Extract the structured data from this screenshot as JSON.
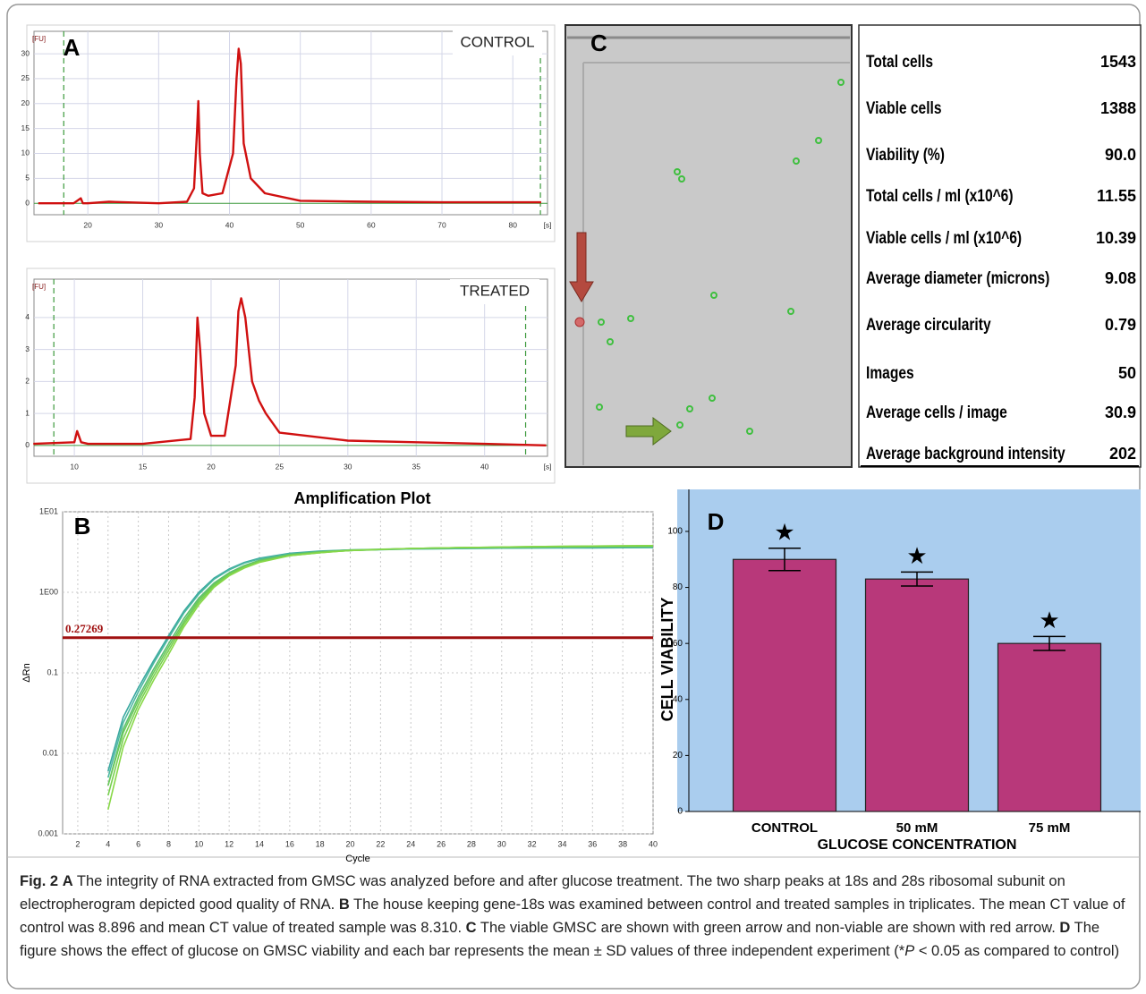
{
  "chart_data": [
    {
      "type": "line",
      "panel": "A",
      "annotation": "CONTROL",
      "y_label": "[FU]",
      "x_label": "[s]",
      "x": [
        13,
        18,
        19,
        19.3,
        20,
        23,
        30,
        34,
        35,
        35.4,
        35.6,
        35.8,
        36.2,
        37,
        39,
        40.5,
        41,
        41.3,
        41.6,
        42,
        43,
        45,
        50,
        60,
        70,
        80,
        84
      ],
      "series": [
        {
          "color": "#d01010",
          "values": [
            0,
            0,
            1,
            0,
            0,
            0.3,
            0,
            0.3,
            3,
            14,
            20.5,
            10,
            2,
            1.5,
            2,
            10,
            25,
            31,
            28,
            12,
            5,
            2,
            0.5,
            0.3,
            0.2,
            0.2,
            0.2
          ]
        }
      ],
      "markers": [
        16.6,
        83.9
      ],
      "xlim": [
        12.4,
        84.9
      ],
      "ylim": [
        -2.3,
        34.5
      ],
      "xticks": [
        20,
        30,
        40,
        50,
        60,
        70,
        80
      ],
      "yticks": [
        0,
        5,
        10,
        15,
        20,
        25,
        30
      ],
      "grid": true
    },
    {
      "type": "line",
      "annotation": "TREATED",
      "y_label": "[FU]",
      "x_label": "[s]",
      "x": [
        7,
        10,
        10.2,
        10.5,
        11,
        15,
        18.5,
        18.8,
        19,
        19.2,
        19.5,
        20,
        21,
        21.8,
        22,
        22.2,
        22.5,
        23,
        23.5,
        24,
        25,
        30,
        35,
        40,
        44.5
      ],
      "series": [
        {
          "color": "#d01010",
          "values": [
            0.05,
            0.1,
            0.45,
            0.1,
            0.05,
            0.05,
            0.2,
            1.5,
            4,
            3,
            1,
            0.3,
            0.3,
            2.5,
            4.2,
            4.6,
            4,
            2,
            1.4,
            1,
            0.4,
            0.15,
            0.1,
            0.05,
            0
          ]
        }
      ],
      "markers": [
        8.5,
        43
      ],
      "xlim": [
        7.05,
        44.6
      ],
      "ylim": [
        -0.34,
        5.2
      ],
      "xticks": [
        10,
        15,
        20,
        25,
        30,
        35,
        40
      ],
      "yticks": [
        0,
        1,
        2,
        3,
        4
      ],
      "grid": true
    },
    {
      "type": "line",
      "title": "Amplification Plot",
      "panel": "B",
      "y_label": "ΔRn",
      "x_label": "Cycle",
      "log_y": true,
      "x": [
        4,
        5,
        6,
        7,
        8,
        9,
        10,
        11,
        12,
        13,
        14,
        16,
        18,
        20,
        24,
        28,
        32,
        36,
        40
      ],
      "series": [
        {
          "color": "#3aa8a0",
          "values": [
            0.006,
            0.028,
            0.065,
            0.14,
            0.29,
            0.58,
            1.0,
            1.5,
            1.95,
            2.35,
            2.65,
            3.05,
            3.25,
            3.35,
            3.45,
            3.5,
            3.55,
            3.55,
            3.6
          ]
        },
        {
          "color": "#4cb8a0",
          "values": [
            0.005,
            0.024,
            0.058,
            0.13,
            0.27,
            0.55,
            0.95,
            1.45,
            1.9,
            2.3,
            2.6,
            3.0,
            3.2,
            3.3,
            3.45,
            3.5,
            3.55,
            3.6,
            3.6
          ]
        },
        {
          "color": "#5cc070",
          "values": [
            0.004,
            0.02,
            0.05,
            0.11,
            0.23,
            0.47,
            0.85,
            1.3,
            1.75,
            2.15,
            2.5,
            2.95,
            3.2,
            3.35,
            3.5,
            3.6,
            3.65,
            3.7,
            3.7
          ]
        },
        {
          "color": "#6cc85a",
          "values": [
            0.004,
            0.018,
            0.045,
            0.1,
            0.21,
            0.43,
            0.8,
            1.25,
            1.7,
            2.1,
            2.45,
            2.9,
            3.15,
            3.3,
            3.5,
            3.6,
            3.65,
            3.7,
            3.75
          ]
        },
        {
          "color": "#78d050",
          "values": [
            0.003,
            0.015,
            0.04,
            0.09,
            0.19,
            0.4,
            0.75,
            1.2,
            1.65,
            2.05,
            2.4,
            2.85,
            3.1,
            3.3,
            3.5,
            3.6,
            3.7,
            3.75,
            3.8
          ]
        },
        {
          "color": "#88d848",
          "values": [
            0.002,
            0.012,
            0.035,
            0.08,
            0.17,
            0.37,
            0.7,
            1.15,
            1.6,
            2.0,
            2.35,
            2.85,
            3.1,
            3.3,
            3.5,
            3.6,
            3.7,
            3.75,
            3.8
          ]
        }
      ],
      "threshold": 0.27269,
      "threshold_color": "#a01010",
      "xlim": [
        1,
        40
      ],
      "ylim": [
        0.001,
        10
      ],
      "xticks": [
        2,
        4,
        6,
        8,
        10,
        12,
        14,
        16,
        18,
        20,
        22,
        24,
        26,
        28,
        30,
        32,
        34,
        36,
        38,
        40
      ],
      "yticks": [
        0.001,
        0.01,
        0.1,
        {
          "value": 1,
          "label": "1E00"
        },
        {
          "value": 10,
          "label": "1E01"
        }
      ],
      "grid": true
    },
    {
      "type": "bar",
      "panel": "D",
      "y_label": "CELL VIABILITY",
      "x_label": "GLUCOSE CONCENTRATION",
      "categories": [
        "CONTROL",
        "50 mM",
        "75 mM"
      ],
      "values": [
        90,
        83,
        60
      ],
      "errors": [
        4,
        2.5,
        2.5
      ],
      "annotations": [
        "★",
        "★",
        "★"
      ],
      "color": "#b8387a",
      "background": "#aacdee",
      "ylim": [
        0,
        115
      ],
      "yticks": [
        0,
        20,
        40,
        60,
        80,
        100
      ]
    }
  ],
  "image": {
    "panel": "C"
  },
  "table": {
    "rows": [
      [
        "Total cells",
        "1543"
      ],
      [
        "Viable cells",
        "1388"
      ],
      [
        "Viability (%)",
        "90.0"
      ],
      [
        "Total cells / ml (x10^6)",
        "11.55"
      ],
      [
        "Viable cells / ml (x10^6)",
        "10.39"
      ],
      [
        "Average diameter (microns)",
        "9.08"
      ],
      [
        "Average circularity",
        "0.79"
      ],
      [
        "Images",
        "50"
      ],
      [
        "Average cells / image",
        "30.9"
      ],
      [
        "Average background intensity",
        "202"
      ]
    ]
  },
  "caption": {
    "figure": "Fig. 2",
    "parts": [
      {
        "label": "A",
        "text": "The integrity of RNA extracted from GMSC was analyzed before and after glucose treatment. The two sharp peaks at 18s and 28s ribosomal subunit on electropherogram depicted good quality of RNA."
      },
      {
        "label": "B",
        "text": "The house keeping gene-18s was examined between control and treated samples in triplicates. The mean CT value of control was 8.896 and mean CT value of treated sample was 8.310."
      },
      {
        "label": "C",
        "text": "The viable GMSC are shown with green arrow and non-viable are shown with red arrow."
      },
      {
        "label": "D",
        "text": "The figure shows the effect of glucose on GMSC viability and each bar represents the mean ± SD values of three independent experiment (*",
        "italic": "P",
        "tail": " < 0.05 as compared to control)"
      }
    ]
  }
}
